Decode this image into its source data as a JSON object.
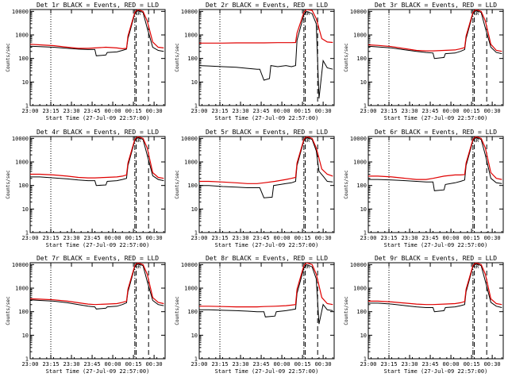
{
  "figure": {
    "xlabel": "Start Time (27-Jul-09 22:57:00)",
    "ylabel": "Counts/sec",
    "x_tick_labels": [
      "23:00",
      "23:15",
      "23:30",
      "23:45",
      "00:00",
      "00:15",
      "00:30"
    ],
    "x_tick_minutes": [
      3,
      18,
      33,
      48,
      63,
      78,
      93
    ],
    "xlim_minutes": [
      3,
      101
    ],
    "y_tick_labels": [
      "1",
      "10",
      "100",
      "1000",
      "10000"
    ],
    "y_tick_values": [
      1,
      10,
      100,
      1000,
      10000
    ],
    "ylim": [
      1,
      12000
    ],
    "yscale": "log",
    "marker_labels": [
      "E",
      "R"
    ],
    "vertical_lines_minutes": {
      "dotted": 18,
      "dash_dot": 79,
      "dashed_1": 80,
      "dashed_2": 89
    },
    "colors": {
      "events": "#000000",
      "lld": "#e00000"
    }
  },
  "chart_data": [
    {
      "type": "line",
      "title": "Det 1r BLACK = Events, RED = LLD",
      "series": [
        {
          "name": "Events",
          "x": [
            3,
            10,
            20,
            30,
            38,
            45,
            50,
            51,
            58,
            59,
            66,
            70,
            73,
            74,
            79,
            81,
            85,
            88,
            92,
            96,
            100
          ],
          "y": [
            330,
            320,
            300,
            270,
            250,
            240,
            240,
            130,
            140,
            180,
            190,
            220,
            250,
            700,
            8000,
            11000,
            9000,
            2000,
            300,
            220,
            200
          ]
        },
        {
          "name": "LLD",
          "x": [
            3,
            10,
            20,
            30,
            38,
            45,
            50,
            58,
            66,
            70,
            73,
            74,
            79,
            81,
            85,
            88,
            92,
            96,
            100
          ],
          "y": [
            400,
            380,
            350,
            300,
            270,
            270,
            280,
            300,
            280,
            260,
            270,
            900,
            9000,
            12000,
            10000,
            4000,
            500,
            300,
            280
          ]
        }
      ]
    },
    {
      "type": "line",
      "title": "Det 2r BLACK = Events, RED = LLD",
      "series": [
        {
          "name": "Events",
          "x": [
            3,
            10,
            20,
            30,
            38,
            45,
            47,
            50,
            54,
            55,
            60,
            66,
            70,
            73,
            74,
            79,
            81,
            85,
            88,
            90,
            93,
            96,
            100
          ],
          "y": [
            50,
            48,
            45,
            42,
            38,
            35,
            35,
            12,
            14,
            50,
            45,
            50,
            45,
            50,
            600,
            7000,
            10000,
            8000,
            3000,
            2,
            80,
            40,
            35
          ]
        },
        {
          "name": "LLD",
          "x": [
            3,
            10,
            20,
            30,
            40,
            50,
            60,
            70,
            73,
            74,
            79,
            81,
            85,
            88,
            92,
            96,
            100
          ],
          "y": [
            450,
            450,
            450,
            460,
            460,
            460,
            470,
            470,
            480,
            1200,
            9000,
            12000,
            11000,
            5000,
            700,
            500,
            480
          ]
        }
      ]
    },
    {
      "type": "line",
      "title": "Det 3r BLACK = Events, RED = LLD",
      "series": [
        {
          "name": "Events",
          "x": [
            3,
            10,
            20,
            30,
            38,
            45,
            50,
            51,
            58,
            59,
            66,
            70,
            73,
            74,
            79,
            81,
            85,
            88,
            92,
            96,
            100
          ],
          "y": [
            330,
            310,
            280,
            230,
            200,
            180,
            170,
            100,
            110,
            160,
            170,
            200,
            240,
            700,
            8000,
            11000,
            9000,
            2000,
            300,
            180,
            160
          ]
        },
        {
          "name": "LLD",
          "x": [
            3,
            10,
            20,
            30,
            38,
            45,
            50,
            58,
            66,
            70,
            73,
            74,
            79,
            81,
            85,
            88,
            92,
            96,
            100
          ],
          "y": [
            380,
            360,
            320,
            260,
            220,
            210,
            210,
            220,
            230,
            260,
            290,
            900,
            9000,
            12000,
            10000,
            4000,
            400,
            220,
            200
          ]
        }
      ]
    },
    {
      "type": "line",
      "title": "Det 4r BLACK = Events, RED = LLD",
      "series": [
        {
          "name": "Events",
          "x": [
            3,
            10,
            20,
            30,
            38,
            45,
            50,
            51,
            58,
            59,
            66,
            70,
            73,
            74,
            79,
            81,
            85,
            88,
            92,
            96,
            100
          ],
          "y": [
            230,
            230,
            210,
            190,
            170,
            160,
            160,
            100,
            105,
            150,
            160,
            180,
            200,
            700,
            8000,
            11000,
            9000,
            2000,
            260,
            180,
            160
          ]
        },
        {
          "name": "LLD",
          "x": [
            3,
            10,
            20,
            30,
            38,
            45,
            50,
            58,
            66,
            70,
            73,
            74,
            79,
            81,
            85,
            88,
            92,
            96,
            100
          ],
          "y": [
            300,
            300,
            280,
            250,
            220,
            210,
            210,
            220,
            230,
            250,
            280,
            900,
            9000,
            12000,
            10000,
            4000,
            350,
            220,
            200
          ]
        }
      ]
    },
    {
      "type": "line",
      "title": "Det 5r BLACK = Events, RED = LLD",
      "series": [
        {
          "name": "Events",
          "x": [
            3,
            10,
            20,
            30,
            38,
            45,
            47,
            50,
            56,
            57,
            62,
            66,
            70,
            73,
            74,
            79,
            81,
            85,
            88,
            90,
            93,
            96,
            100
          ],
          "y": [
            100,
            100,
            90,
            85,
            80,
            80,
            80,
            30,
            32,
            100,
            110,
            120,
            130,
            150,
            700,
            8000,
            11000,
            9000,
            3000,
            400,
            250,
            150,
            140
          ]
        },
        {
          "name": "LLD",
          "x": [
            3,
            10,
            20,
            30,
            38,
            45,
            50,
            58,
            66,
            70,
            73,
            74,
            79,
            81,
            85,
            88,
            92,
            96,
            100
          ],
          "y": [
            150,
            150,
            140,
            130,
            120,
            120,
            130,
            150,
            180,
            200,
            220,
            900,
            9000,
            12000,
            10000,
            4000,
            500,
            300,
            250
          ]
        }
      ]
    },
    {
      "type": "line",
      "title": "Det 6r BLACK = Events, RED = LLD",
      "series": [
        {
          "name": "Events",
          "x": [
            3,
            10,
            20,
            30,
            38,
            45,
            50,
            51,
            58,
            59,
            66,
            70,
            73,
            74,
            79,
            81,
            85,
            88,
            92,
            96,
            100
          ],
          "y": [
            180,
            180,
            170,
            160,
            150,
            140,
            140,
            60,
            65,
            110,
            130,
            150,
            170,
            700,
            8000,
            11000,
            9000,
            2000,
            200,
            130,
            120
          ]
        },
        {
          "name": "LLD",
          "x": [
            3,
            10,
            20,
            30,
            38,
            45,
            50,
            58,
            66,
            70,
            73,
            74,
            79,
            81,
            85,
            88,
            92,
            96,
            100
          ],
          "y": [
            250,
            250,
            230,
            200,
            180,
            180,
            200,
            250,
            280,
            280,
            290,
            900,
            9000,
            12000,
            10000,
            4000,
            350,
            200,
            180
          ]
        }
      ]
    },
    {
      "type": "line",
      "title": "Det 7r BLACK = Events, RED = LLD",
      "series": [
        {
          "name": "Events",
          "x": [
            3,
            10,
            20,
            30,
            38,
            45,
            50,
            51,
            58,
            59,
            66,
            70,
            73,
            74,
            79,
            81,
            85,
            88,
            92,
            96,
            100
          ],
          "y": [
            320,
            300,
            280,
            240,
            200,
            170,
            160,
            130,
            140,
            160,
            170,
            200,
            240,
            700,
            8000,
            11000,
            9000,
            2000,
            300,
            200,
            180
          ]
        },
        {
          "name": "LLD",
          "x": [
            3,
            10,
            20,
            30,
            38,
            45,
            50,
            58,
            66,
            70,
            73,
            74,
            79,
            81,
            85,
            88,
            92,
            96,
            100
          ],
          "y": [
            350,
            340,
            320,
            280,
            240,
            210,
            200,
            210,
            220,
            250,
            280,
            900,
            9000,
            12000,
            10000,
            4000,
            400,
            250,
            220
          ]
        }
      ]
    },
    {
      "type": "line",
      "title": "Det 8r BLACK = Events, RED = LLD",
      "series": [
        {
          "name": "Events",
          "x": [
            3,
            10,
            20,
            30,
            38,
            45,
            50,
            51,
            58,
            59,
            66,
            70,
            73,
            74,
            79,
            81,
            85,
            88,
            90,
            93,
            96,
            100
          ],
          "y": [
            120,
            120,
            115,
            110,
            105,
            100,
            100,
            60,
            65,
            100,
            110,
            120,
            130,
            600,
            7000,
            10000,
            8000,
            2500,
            30,
            200,
            120,
            110
          ]
        },
        {
          "name": "LLD",
          "x": [
            3,
            10,
            20,
            30,
            38,
            45,
            50,
            58,
            66,
            70,
            73,
            74,
            79,
            81,
            85,
            88,
            92,
            96,
            100
          ],
          "y": [
            170,
            170,
            165,
            160,
            160,
            160,
            165,
            170,
            180,
            190,
            200,
            900,
            9000,
            12000,
            10000,
            4000,
            400,
            220,
            200
          ]
        }
      ]
    },
    {
      "type": "line",
      "title": "Det 9r BLACK = Events, RED = LLD",
      "series": [
        {
          "name": "Events",
          "x": [
            3,
            10,
            20,
            30,
            38,
            45,
            50,
            51,
            58,
            59,
            66,
            70,
            73,
            74,
            79,
            81,
            85,
            88,
            92,
            96,
            100
          ],
          "y": [
            230,
            230,
            210,
            180,
            160,
            150,
            150,
            100,
            110,
            150,
            160,
            180,
            200,
            700,
            8000,
            11000,
            9000,
            2000,
            250,
            170,
            150
          ]
        },
        {
          "name": "LLD",
          "x": [
            3,
            10,
            20,
            30,
            38,
            45,
            50,
            58,
            66,
            70,
            73,
            74,
            79,
            81,
            85,
            88,
            92,
            96,
            100
          ],
          "y": [
            280,
            280,
            260,
            230,
            210,
            200,
            200,
            210,
            220,
            240,
            270,
            900,
            9000,
            12000,
            10000,
            4000,
            350,
            220,
            200
          ]
        }
      ]
    }
  ]
}
